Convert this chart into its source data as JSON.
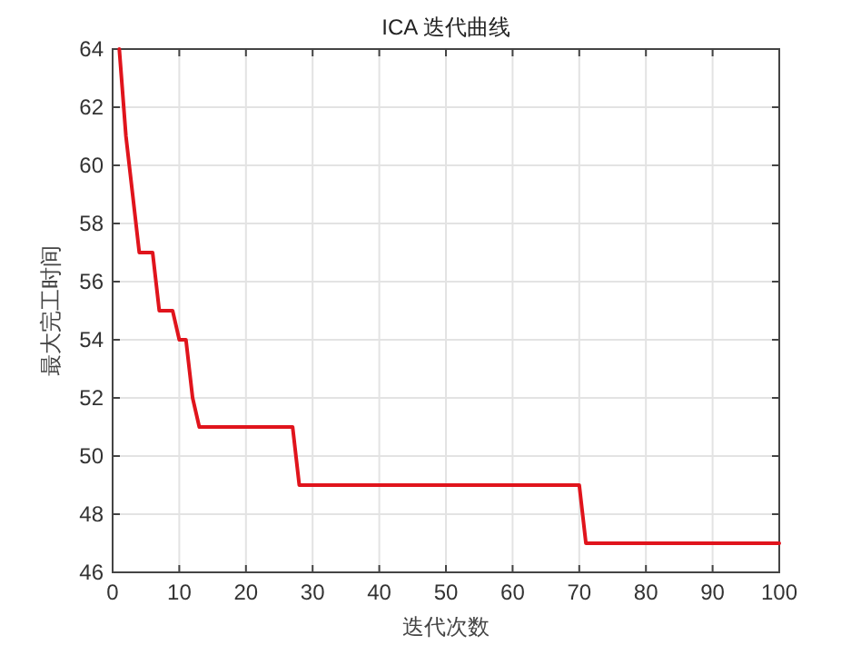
{
  "chart_data": {
    "type": "line",
    "title": "ICA 迭代曲线",
    "xlabel": "迭代次数",
    "ylabel": "最大完工时间",
    "x": [
      1,
      2,
      3,
      4,
      6,
      7,
      9,
      10,
      11,
      12,
      13,
      27,
      28,
      70,
      71,
      100
    ],
    "series": [
      {
        "color": "#e0141c",
        "values": [
          64,
          61,
          59,
          57,
          57,
          55,
          55,
          54,
          54,
          52,
          51,
          51,
          49,
          49,
          47,
          47
        ]
      }
    ],
    "xlim": [
      0,
      100
    ],
    "xticks": [
      0,
      10,
      20,
      30,
      40,
      50,
      60,
      70,
      80,
      90,
      100
    ],
    "ylim": [
      46,
      64
    ],
    "yticks": [
      46,
      48,
      50,
      52,
      54,
      56,
      58,
      60,
      62,
      64
    ],
    "grid": true,
    "marker": "none",
    "line_style": "solid"
  }
}
